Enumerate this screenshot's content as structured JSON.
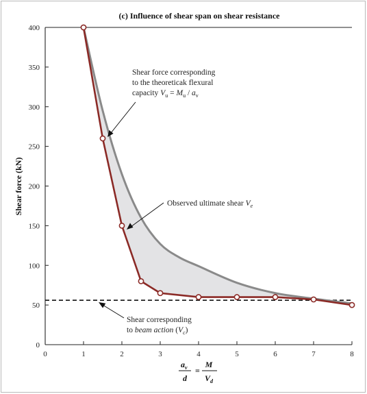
{
  "chart_data": {
    "type": "line",
    "title": "(c) Influence of shear span on shear resistance",
    "ylabel": "Shear force (kN)",
    "xlabel": {
      "lhs_num": "a",
      "lhs_num_sub": "v",
      "lhs_den": "d",
      "rhs_num": "M",
      "rhs_den": "V",
      "rhs_den_sub": "d"
    },
    "xlim": [
      0,
      8
    ],
    "ylim": [
      0,
      400
    ],
    "xticks": [
      0,
      1,
      2,
      3,
      4,
      5,
      6,
      7,
      8
    ],
    "yticks": [
      0,
      50,
      100,
      150,
      200,
      250,
      300,
      350,
      400
    ],
    "grid": false,
    "series": [
      {
        "role": "observed",
        "color": "#8b2a26",
        "markers": true,
        "points": [
          [
            1,
            400
          ],
          [
            1.5,
            260
          ],
          [
            2,
            150
          ],
          [
            2.5,
            80
          ],
          [
            3,
            65
          ],
          [
            4,
            60
          ],
          [
            5,
            60
          ],
          [
            6,
            60
          ],
          [
            7,
            57
          ],
          [
            8,
            50
          ]
        ]
      },
      {
        "role": "flexural",
        "color": "#8a8a8a",
        "markers": false,
        "points": [
          [
            1,
            400
          ],
          [
            1.5,
            295
          ],
          [
            2,
            215
          ],
          [
            2.5,
            160
          ],
          [
            3,
            127
          ],
          [
            3.5,
            110
          ],
          [
            4,
            99
          ],
          [
            5,
            78
          ],
          [
            6,
            65
          ],
          [
            7,
            58
          ],
          [
            8,
            52
          ]
        ]
      },
      {
        "role": "beam_action",
        "color": "#111111",
        "dashed": true,
        "points": [
          [
            0,
            56
          ],
          [
            8,
            56
          ]
        ]
      }
    ],
    "fill_between": {
      "color": "#e3e3e5"
    },
    "annotations": [
      {
        "id": "flexural",
        "lines": [
          "Shear force corresponding",
          "to the theoreticak flexural",
          "capacity "
        ],
        "formula": {
          "v1": "V",
          "s1": "u",
          "eq": " = ",
          "v2": "M",
          "s2": "u",
          "sep": " / ",
          "v3": "a",
          "s3": "v"
        }
      },
      {
        "id": "observed",
        "lines": [
          "Observed ultimate shear "
        ],
        "symbol": "V",
        "symbol_sub": "e"
      },
      {
        "id": "beam",
        "lines": [
          "Shear corresponding"
        ],
        "line2_prefix": "to ",
        "line2_italic": "beam action",
        "line2_paren_open": " (",
        "symbol": "V",
        "symbol_sub": "c",
        "line2_paren_close": ")"
      }
    ]
  }
}
